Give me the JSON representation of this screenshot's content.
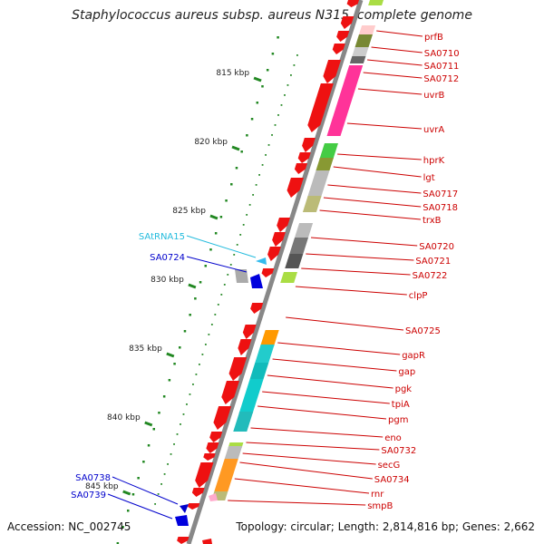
{
  "title": "Staphylococcus aureus subsp. aureus N315, complete genome",
  "footer": {
    "accession": "Accession: NC_002745",
    "stats": "Topology: circular; Length: 2,814,816 bp; Genes: 2,662"
  },
  "scale_labels": [
    "815 kbp",
    "820 kbp",
    "825 kbp",
    "830 kbp",
    "835 kbp",
    "840 kbp",
    "845 kbp"
  ],
  "colors": {
    "backbone": "#888888",
    "cds": "#ee1111",
    "label_red": "#cc0000",
    "label_blue": "#0000cc",
    "label_cyan": "#22bbdd",
    "tick": "#228822"
  },
  "genes_right": [
    "prfB",
    "SA0710",
    "SA0711",
    "SA0712",
    "uvrB",
    "uvrA",
    "hprK",
    "lgt",
    "SA0717",
    "SA0718",
    "trxB",
    "SA0720",
    "SA0721",
    "SA0722",
    "clpP",
    "SA0725",
    "gapR",
    "gap",
    "pgk",
    "tpiA",
    "pgm",
    "eno",
    "SA0732",
    "secG",
    "SA0734",
    "rnr",
    "smpB"
  ],
  "genes_left": [
    {
      "label": "SAtRNA15",
      "color": "#22bbdd"
    },
    {
      "label": "SA0724",
      "color": "#0000cc"
    },
    {
      "label": "SA0738",
      "color": "#0000cc"
    },
    {
      "label": "SA0739",
      "color": "#0000cc"
    }
  ]
}
